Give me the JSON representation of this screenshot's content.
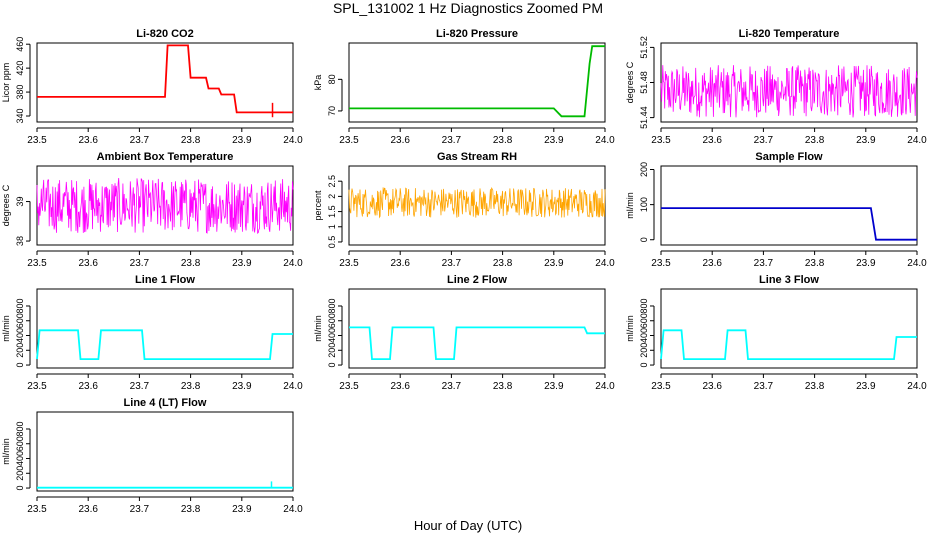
{
  "figure": {
    "title": "SPL_131002  1 Hz Diagnostics Zoomed PM",
    "xlabel": "Hour of Day (UTC)"
  },
  "chart_data": [
    {
      "type": "line",
      "title": "Li-820 CO2",
      "xlabel": "",
      "ylabel": "Licor ppm",
      "color": "#ff0000",
      "style": "step",
      "xlim": [
        23.5,
        24.0
      ],
      "ylim": [
        330,
        462
      ],
      "xticks": [
        "23.5",
        "23.6",
        "23.7",
        "23.8",
        "23.9",
        "24.0"
      ],
      "yticks": [
        340,
        380,
        420,
        460
      ],
      "series": [
        {
          "x": [
            23.5,
            23.75,
            23.755,
            23.795,
            23.8,
            23.83,
            23.835,
            23.855,
            23.86,
            23.885,
            23.89,
            24.0
          ],
          "y": [
            372,
            372,
            458,
            458,
            404,
            404,
            386,
            386,
            376,
            376,
            346,
            346
          ]
        }
      ],
      "annotations": [
        {
          "x": 23.96,
          "y": [
            338,
            362
          ]
        }
      ]
    },
    {
      "type": "line",
      "title": "Li-820 Pressure",
      "xlabel": "",
      "ylabel": "kPa",
      "color": "#00bb00",
      "style": "step",
      "xlim": [
        23.5,
        24.0
      ],
      "ylim": [
        66.5,
        91.5
      ],
      "xticks": [
        "23.5",
        "23.6",
        "23.7",
        "23.8",
        "23.9",
        "24.0"
      ],
      "yticks": [
        70,
        80
      ],
      "series": [
        {
          "x": [
            23.5,
            23.9,
            23.915,
            23.96,
            23.97,
            23.975,
            24.0
          ],
          "y": [
            70.8,
            70.8,
            68.3,
            68.3,
            85,
            90.5,
            90.5
          ]
        }
      ]
    },
    {
      "type": "line",
      "title": "Li-820 Temperature",
      "xlabel": "",
      "ylabel": "degrees C",
      "color": "#ff00ff",
      "style": "noise",
      "xlim": [
        23.5,
        24.0
      ],
      "ylim": [
        51.435,
        51.525
      ],
      "xticks": [
        "23.5",
        "23.6",
        "23.7",
        "23.8",
        "23.9",
        "24.0"
      ],
      "yticks": [
        51.44,
        51.48,
        51.52
      ],
      "series": [
        {
          "x": [
            23.5,
            24.0
          ],
          "lo": 51.44,
          "hi": 51.5
        }
      ]
    },
    {
      "type": "line",
      "title": "Ambient Box Temperature",
      "xlabel": "",
      "ylabel": "degrees C",
      "color": "#ff00ff",
      "style": "noise",
      "xlim": [
        23.5,
        24.0
      ],
      "ylim": [
        37.9,
        39.9
      ],
      "xticks": [
        "23.5",
        "23.6",
        "23.7",
        "23.8",
        "23.9",
        "24.0"
      ],
      "yticks": [
        38.0,
        39.0
      ],
      "series": [
        {
          "x": [
            23.5,
            24.0
          ],
          "lo": 38.2,
          "hi": 39.6
        }
      ]
    },
    {
      "type": "line",
      "title": "Gas Stream RH",
      "xlabel": "",
      "ylabel": "percent",
      "color": "#ffa500",
      "style": "noise",
      "xlim": [
        23.5,
        24.0
      ],
      "ylim": [
        0.4,
        3.0
      ],
      "xticks": [
        "23.5",
        "23.6",
        "23.7",
        "23.8",
        "23.9",
        "24.0"
      ],
      "yticks": [
        0.5,
        1.0,
        1.5,
        2.0,
        2.5
      ],
      "series": [
        {
          "x": [
            23.5,
            24.0
          ],
          "lo": 1.3,
          "hi": 2.3
        }
      ]
    },
    {
      "type": "line",
      "title": "Sample Flow",
      "xlabel": "",
      "ylabel": "ml/min",
      "color": "#0000cc",
      "style": "step",
      "xlim": [
        23.5,
        24.0
      ],
      "ylim": [
        -15,
        210
      ],
      "xticks": [
        "23.5",
        "23.6",
        "23.7",
        "23.8",
        "23.9",
        "24.0"
      ],
      "yticks": [
        0,
        100,
        200
      ],
      "series": [
        {
          "x": [
            23.5,
            23.91,
            23.92,
            24.0
          ],
          "y": [
            90,
            90,
            0,
            0
          ]
        }
      ]
    },
    {
      "type": "line",
      "title": "Line 1 Flow",
      "xlabel": "",
      "ylabel": "ml/min",
      "color": "#00ffff",
      "style": "step",
      "xlim": [
        23.5,
        24.0
      ],
      "ylim": [
        -40,
        1030
      ],
      "xticks": [
        "23.5",
        "23.6",
        "23.7",
        "23.8",
        "23.9",
        "24.0"
      ],
      "yticks": [
        0,
        200,
        400,
        600,
        800
      ],
      "series": [
        {
          "x": [
            23.5,
            23.505,
            23.58,
            23.585,
            23.62,
            23.625,
            23.705,
            23.71,
            23.955,
            23.96,
            24.0
          ],
          "y": [
            80,
            470,
            470,
            80,
            80,
            470,
            470,
            80,
            80,
            420,
            420
          ]
        }
      ]
    },
    {
      "type": "line",
      "title": "Line 2 Flow",
      "xlabel": "",
      "ylabel": "ml/min",
      "color": "#00ffff",
      "style": "step",
      "xlim": [
        23.5,
        24.0
      ],
      "ylim": [
        -40,
        1030
      ],
      "xticks": [
        "23.5",
        "23.6",
        "23.7",
        "23.8",
        "23.9",
        "24.0"
      ],
      "yticks": [
        0,
        200,
        400,
        600,
        800
      ],
      "series": [
        {
          "x": [
            23.5,
            23.54,
            23.545,
            23.58,
            23.585,
            23.665,
            23.67,
            23.705,
            23.71,
            23.96,
            23.965,
            24.0
          ],
          "y": [
            510,
            510,
            80,
            80,
            510,
            510,
            80,
            80,
            510,
            510,
            430,
            430
          ]
        }
      ]
    },
    {
      "type": "line",
      "title": "Line 3 Flow",
      "xlabel": "",
      "ylabel": "ml/min",
      "color": "#00ffff",
      "style": "step",
      "xlim": [
        23.5,
        24.0
      ],
      "ylim": [
        -40,
        1030
      ],
      "xticks": [
        "23.5",
        "23.6",
        "23.7",
        "23.8",
        "23.9",
        "24.0"
      ],
      "yticks": [
        0,
        200,
        400,
        600,
        800
      ],
      "series": [
        {
          "x": [
            23.5,
            23.505,
            23.54,
            23.545,
            23.625,
            23.63,
            23.665,
            23.67,
            23.955,
            23.96,
            24.0
          ],
          "y": [
            80,
            470,
            470,
            80,
            80,
            470,
            470,
            80,
            80,
            380,
            380
          ]
        }
      ]
    },
    {
      "type": "line",
      "title": "Line 4 (LT) Flow",
      "xlabel": "",
      "ylabel": "ml/min",
      "color": "#00ffff",
      "style": "step",
      "xlim": [
        23.5,
        24.0
      ],
      "ylim": [
        -40,
        1030
      ],
      "xticks": [
        "23.5",
        "23.6",
        "23.7",
        "23.8",
        "23.9",
        "24.0"
      ],
      "yticks": [
        0,
        200,
        400,
        600,
        800
      ],
      "series": [
        {
          "x": [
            23.5,
            24.0
          ],
          "y": [
            5,
            5
          ]
        }
      ],
      "annotations": [
        {
          "x": 23.958,
          "y": [
            5,
            90
          ]
        }
      ]
    }
  ]
}
